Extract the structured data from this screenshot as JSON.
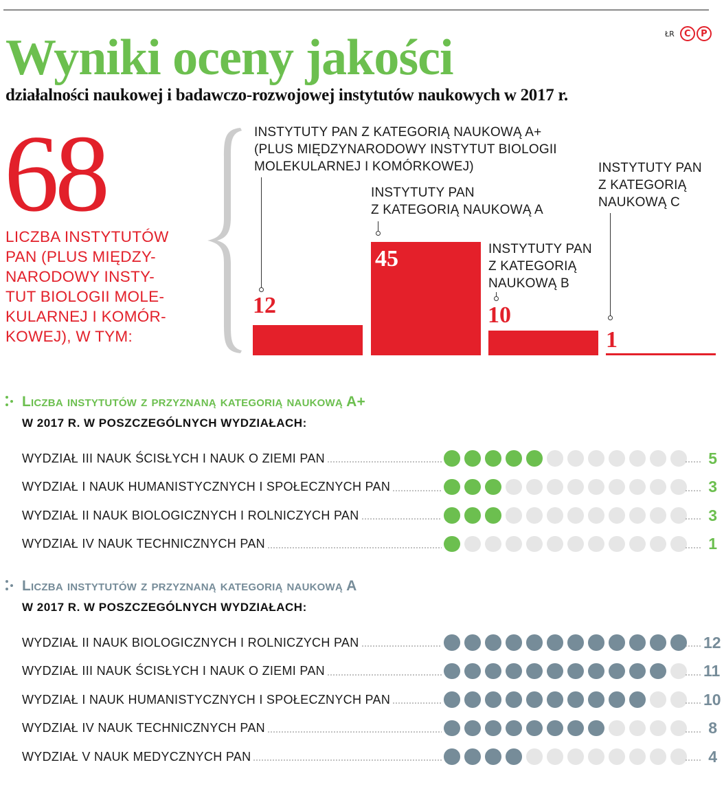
{
  "header": {
    "title": "Wyniki oceny jakości",
    "subtitle": "działalności naukowej i badawczo-rozwojowej instytutów naukowych w 2017 r.",
    "credit": "ŁR",
    "logo_letters": [
      "C",
      "P"
    ]
  },
  "total": {
    "value": "68",
    "description": "LICZBA INSTYTUTÓW\nPAN (PLUS MIĘDZY-\nNARODOWY INSTY-\nTUT BIOLOGII MOLE-\nKULARNEJ I KOMÓR-\nKOWEJ), W TYM:"
  },
  "colors": {
    "red": "#e4202a",
    "green": "#6cbf4f",
    "slate": "#768c99",
    "empty_dot": "#e6e6e6",
    "brace": "#cccccc"
  },
  "bars": [
    {
      "label": "INSTYTUTY PAN Z KATEGORIĄ NAUKOWĄ A+\n(PLUS MIĘDZYNARODOWY INSTYTUT BIOLOGII\nMOLEKULARNEJ I KOMÓRKOWEJ)",
      "value": "12"
    },
    {
      "label": "INSTYTUTY PAN\nZ KATEGORIĄ NAUKOWĄ A",
      "value": "45"
    },
    {
      "label": "INSTYTUTY PAN\nZ KATEGORIĄ\nNAUKOWĄ B",
      "value": "10"
    },
    {
      "label": "INSTYTUTY PAN\nZ KATEGORIĄ\nNAUKOWĄ C",
      "value": "1"
    }
  ],
  "section_aplus": {
    "title": "Liczba instytutów z przyznaną kategorią naukową A+",
    "subtitle": "W 2017 R. W POSZCZEGÓLNYCH WYDZIAŁACH:",
    "max_dots": 12,
    "rows": [
      {
        "label": "WYDZIAŁ III NAUK ŚCISŁYCH I NAUK O ZIEMI PAN",
        "value": "5"
      },
      {
        "label": "WYDZIAŁ I NAUK HUMANISTYCZNYCH I SPOŁECZNYCH PAN",
        "value": "3"
      },
      {
        "label": "WYDZIAŁ II NAUK BIOLOGICZNYCH I ROLNICZYCH PAN",
        "value": "3"
      },
      {
        "label": "WYDZIAŁ IV NAUK TECHNICZNYCH PAN",
        "value": "1"
      }
    ]
  },
  "section_a": {
    "title": "Liczba instytutów z przyznaną kategorią naukową A",
    "subtitle": "W 2017 R. W POSZCZEGÓLNYCH WYDZIAŁACH:",
    "max_dots": 12,
    "rows": [
      {
        "label": "WYDZIAŁ II NAUK BIOLOGICZNYCH I ROLNICZYCH PAN",
        "value": "12"
      },
      {
        "label": "WYDZIAŁ III NAUK ŚCISŁYCH I NAUK O ZIEMI PAN",
        "value": "11"
      },
      {
        "label": "WYDZIAŁ I NAUK HUMANISTYCZNYCH I SPOŁECZNYCH PAN",
        "value": "10"
      },
      {
        "label": "WYDZIAŁ IV NAUK TECHNICZNYCH PAN",
        "value": "8"
      },
      {
        "label": "WYDZIAŁ V NAUK MEDYCZNYCH PAN",
        "value": "4"
      }
    ]
  },
  "chart_data": [
    {
      "type": "bar",
      "title": "Liczba instytutów PAN (68) wg kategorii naukowej, 2017",
      "categories": [
        "A+",
        "A",
        "B",
        "C"
      ],
      "values": [
        12,
        45,
        10,
        1
      ],
      "xlabel": "",
      "ylabel": "",
      "ylim": [
        0,
        45
      ],
      "grid": false,
      "total": 68
    },
    {
      "type": "table",
      "title": "Liczba instytutów z przyznaną kategorią naukową A+ w 2017 r. w poszczególnych wydziałach",
      "categories": [
        "WYDZIAŁ III NAUK ŚCISŁYCH I NAUK O ZIEMI PAN",
        "WYDZIAŁ I NAUK HUMANISTYCZNYCH I SPOŁECZNYCH PAN",
        "WYDZIAŁ II NAUK BIOLOGICZNYCH I ROLNICZYCH PAN",
        "WYDZIAŁ IV NAUK TECHNICZNYCH PAN"
      ],
      "values": [
        5,
        3,
        3,
        1
      ],
      "scale_max": 12
    },
    {
      "type": "table",
      "title": "Liczba instytutów z przyznaną kategorią naukową A w 2017 r. w poszczególnych wydziałach",
      "categories": [
        "WYDZIAŁ II NAUK BIOLOGICZNYCH I ROLNICZYCH PAN",
        "WYDZIAŁ III NAUK ŚCISŁYCH I NAUK O ZIEMI PAN",
        "WYDZIAŁ I NAUK HUMANISTYCZNYCH I SPOŁECZNYCH PAN",
        "WYDZIAŁ IV NAUK TECHNICZNYCH PAN",
        "WYDZIAŁ V NAUK MEDYCZNYCH PAN"
      ],
      "values": [
        12,
        11,
        10,
        8,
        4
      ],
      "scale_max": 12
    }
  ]
}
